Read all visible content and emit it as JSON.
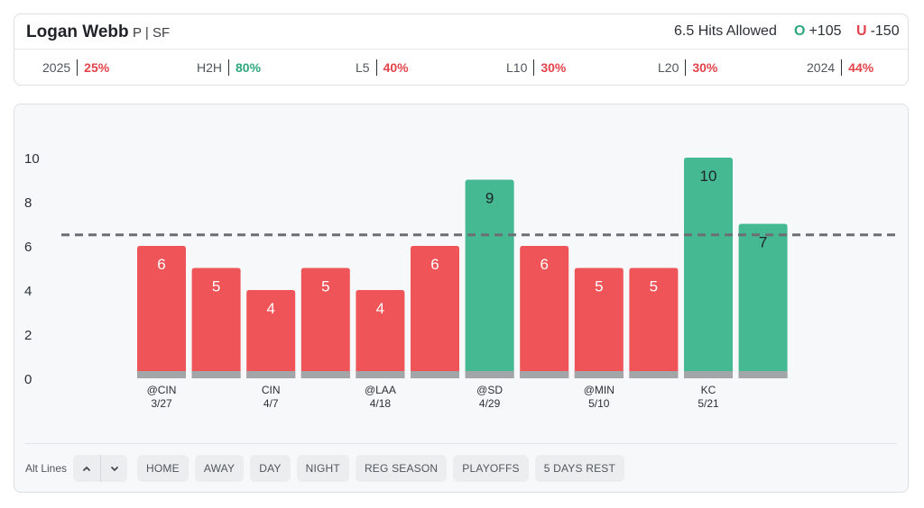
{
  "header": {
    "player_name": "Logan Webb",
    "player_meta": "P | SF",
    "prop_line": "6.5 Hits Allowed",
    "over_mark": "O",
    "over_odds": "+105",
    "under_mark": "U",
    "under_odds": "-150"
  },
  "stats": [
    {
      "label": "2025",
      "value": "25%",
      "color": "#e4434b"
    },
    {
      "label": "H2H",
      "value": "80%",
      "color": "#2fa77e"
    },
    {
      "label": "L5",
      "value": "40%",
      "color": "#e4434b"
    },
    {
      "label": "L10",
      "value": "30%",
      "color": "#e4434b"
    },
    {
      "label": "L20",
      "value": "30%",
      "color": "#e4434b"
    },
    {
      "label": "2024",
      "value": "44%",
      "color": "#e4434b"
    }
  ],
  "colors": {
    "over": "#45b992",
    "under": "#ef5558",
    "base": "#a3a6a9",
    "line": "#6b6f74"
  },
  "chart_data": {
    "type": "bar",
    "title": "",
    "xlabel": "",
    "ylabel": "",
    "ylim": [
      0,
      10
    ],
    "yticks": [
      "0",
      "2",
      "4",
      "6",
      "8",
      "10"
    ],
    "line_value": 6.5,
    "bars": [
      {
        "value": 6,
        "opp": "@CIN",
        "date": "3/27",
        "result": "under"
      },
      {
        "value": 5,
        "opp": "",
        "date": "",
        "result": "under"
      },
      {
        "value": 4,
        "opp": "CIN",
        "date": "4/7",
        "result": "under"
      },
      {
        "value": 5,
        "opp": "",
        "date": "",
        "result": "under"
      },
      {
        "value": 4,
        "opp": "@LAA",
        "date": "4/18",
        "result": "under"
      },
      {
        "value": 6,
        "opp": "",
        "date": "",
        "result": "under"
      },
      {
        "value": 9,
        "opp": "@SD",
        "date": "4/29",
        "result": "over"
      },
      {
        "value": 6,
        "opp": "",
        "date": "",
        "result": "under"
      },
      {
        "value": 5,
        "opp": "@MIN",
        "date": "5/10",
        "result": "under"
      },
      {
        "value": 5,
        "opp": "",
        "date": "",
        "result": "under"
      },
      {
        "value": 10,
        "opp": "KC",
        "date": "5/21",
        "result": "over"
      },
      {
        "value": 7,
        "opp": "",
        "date": "",
        "result": "over"
      }
    ]
  },
  "filters": {
    "alt_lines_label": "Alt Lines",
    "up_icon": "chevron-up-icon",
    "down_icon": "chevron-down-icon",
    "chips": [
      "HOME",
      "AWAY",
      "DAY",
      "NIGHT",
      "REG SEASON",
      "PLAYOFFS",
      "5 DAYS REST"
    ]
  }
}
